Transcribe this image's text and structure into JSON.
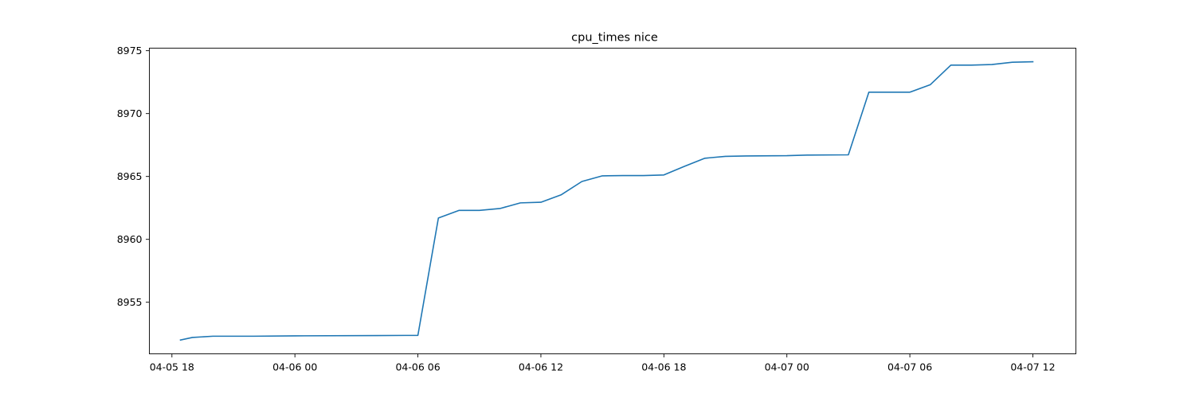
{
  "chart_data": {
    "type": "line",
    "title": "cpu_times nice",
    "xlabel": "",
    "ylabel": "",
    "xlim": [
      "2024-04-05 16:54",
      "2024-04-07 14:06"
    ],
    "ylim": [
      8950.9,
      8975.2
    ],
    "grid": false,
    "legend": "none",
    "x_ticks": [
      {
        "value": "2024-04-05 18:00",
        "label": "04-05 18"
      },
      {
        "value": "2024-04-06 00:00",
        "label": "04-06 00"
      },
      {
        "value": "2024-04-06 06:00",
        "label": "04-06 06"
      },
      {
        "value": "2024-04-06 12:00",
        "label": "04-06 12"
      },
      {
        "value": "2024-04-06 18:00",
        "label": "04-06 18"
      },
      {
        "value": "2024-04-07 00:00",
        "label": "04-07 00"
      },
      {
        "value": "2024-04-07 06:00",
        "label": "04-07 06"
      },
      {
        "value": "2024-04-07 12:00",
        "label": "04-07 12"
      }
    ],
    "y_ticks": [
      {
        "value": 8955,
        "label": "8955"
      },
      {
        "value": 8960,
        "label": "8960"
      },
      {
        "value": 8965,
        "label": "8965"
      },
      {
        "value": 8970,
        "label": "8970"
      },
      {
        "value": 8975,
        "label": "8975"
      }
    ],
    "series": [
      {
        "color": "#1f77b4",
        "points": [
          {
            "x": "2024-04-05 18:25",
            "y": 8952.0
          },
          {
            "x": "2024-04-05 19:00",
            "y": 8952.2
          },
          {
            "x": "2024-04-05 20:00",
            "y": 8952.3
          },
          {
            "x": "2024-04-05 22:00",
            "y": 8952.3
          },
          {
            "x": "2024-04-06 00:00",
            "y": 8952.33
          },
          {
            "x": "2024-04-06 04:00",
            "y": 8952.35
          },
          {
            "x": "2024-04-06 06:00",
            "y": 8952.37
          },
          {
            "x": "2024-04-06 07:00",
            "y": 8961.7
          },
          {
            "x": "2024-04-06 08:00",
            "y": 8962.3
          },
          {
            "x": "2024-04-06 09:00",
            "y": 8962.3
          },
          {
            "x": "2024-04-06 10:00",
            "y": 8962.45
          },
          {
            "x": "2024-04-06 11:00",
            "y": 8962.9
          },
          {
            "x": "2024-04-06 12:00",
            "y": 8962.95
          },
          {
            "x": "2024-04-06 13:00",
            "y": 8963.55
          },
          {
            "x": "2024-04-06 14:00",
            "y": 8964.6
          },
          {
            "x": "2024-04-06 15:00",
            "y": 8965.05
          },
          {
            "x": "2024-04-06 16:00",
            "y": 8965.07
          },
          {
            "x": "2024-04-06 17:00",
            "y": 8965.07
          },
          {
            "x": "2024-04-06 18:00",
            "y": 8965.12
          },
          {
            "x": "2024-04-06 19:00",
            "y": 8965.8
          },
          {
            "x": "2024-04-06 20:00",
            "y": 8966.45
          },
          {
            "x": "2024-04-06 21:00",
            "y": 8966.6
          },
          {
            "x": "2024-04-06 22:00",
            "y": 8966.63
          },
          {
            "x": "2024-04-07 00:00",
            "y": 8966.65
          },
          {
            "x": "2024-04-07 01:00",
            "y": 8966.7
          },
          {
            "x": "2024-04-07 03:00",
            "y": 8966.72
          },
          {
            "x": "2024-04-07 04:00",
            "y": 8971.7
          },
          {
            "x": "2024-04-07 06:00",
            "y": 8971.7
          },
          {
            "x": "2024-04-07 07:00",
            "y": 8972.3
          },
          {
            "x": "2024-04-07 08:00",
            "y": 8973.85
          },
          {
            "x": "2024-04-07 09:00",
            "y": 8973.85
          },
          {
            "x": "2024-04-07 10:00",
            "y": 8973.9
          },
          {
            "x": "2024-04-07 11:00",
            "y": 8974.08
          },
          {
            "x": "2024-04-07 12:00",
            "y": 8974.12
          }
        ]
      }
    ]
  }
}
